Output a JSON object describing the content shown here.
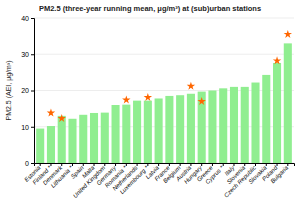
{
  "chart_data": {
    "type": "bar",
    "title": "PM2.5 (three-year running mean, μg/m³) at (sub)urban stations",
    "ylabel": "PM2.5 (AEI, μg/m³)",
    "categories": [
      "Estonia",
      "Finland *",
      "Denmark",
      "Lithuania *",
      "Spain",
      "Malta",
      "United Kingdom",
      "Germany",
      "Romania *",
      "Netherlands",
      "Luxembourg *",
      "Latvia",
      "France",
      "Belgium",
      "Austria",
      "Hungary",
      "Greece",
      "Cyprus *",
      "Italy",
      "Slovenia",
      "Czech Republic",
      "Slovakia",
      "Poland",
      "Bulgaria"
    ],
    "series": [
      {
        "type": "bar",
        "color": "#90EE90",
        "values": [
          9.5,
          10.2,
          13.0,
          12.2,
          13.3,
          13.8,
          13.9,
          16.0,
          16.1,
          17.2,
          17.2,
          17.8,
          18.5,
          18.7,
          19.1,
          19.7,
          20.0,
          20.6,
          21.0,
          21.0,
          22.2,
          24.3,
          27.6,
          33.0
        ]
      },
      {
        "type": "scatter",
        "marker": "star",
        "color": "#FF6600",
        "values": [
          null,
          13.8,
          12.3,
          null,
          null,
          null,
          null,
          null,
          17.4,
          null,
          18.1,
          null,
          null,
          null,
          21.2,
          17.0,
          null,
          null,
          null,
          null,
          null,
          null,
          28.2,
          35.5
        ]
      }
    ],
    "ylim": [
      0,
      40
    ],
    "yticks": [
      0,
      10,
      20,
      30,
      40
    ],
    "grid": true
  }
}
